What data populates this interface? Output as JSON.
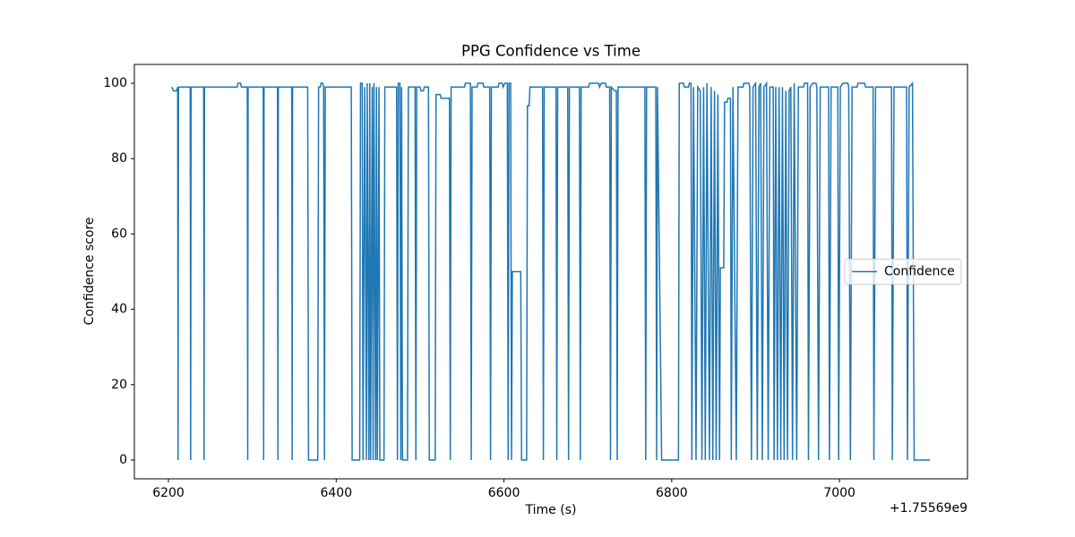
{
  "chart_data": {
    "type": "line",
    "title": "PPG Confidence vs Time",
    "x_label": "Time (s)",
    "y_label": "Confidence score",
    "x_offset_text": "+1.75569e9",
    "xlim": [
      6159.4,
      7152.6
    ],
    "ylim": [
      -5,
      105
    ],
    "xticks": [
      6200,
      6400,
      6600,
      6800,
      7000
    ],
    "yticks": [
      0,
      20,
      40,
      60,
      80,
      100
    ],
    "grid": false,
    "legend_loc": "center right",
    "x": [
      6204,
      6206,
      6210,
      6211,
      6211.5,
      6212,
      6226,
      6226.5,
      6227,
      6242,
      6242.5,
      6243,
      6282,
      6283,
      6286,
      6287,
      6294,
      6294.5,
      6295,
      6313,
      6313.5,
      6314,
      6330,
      6330.5,
      6331,
      6347,
      6347.5,
      6348,
      6366,
      6367,
      6378,
      6379,
      6381,
      6382,
      6384,
      6385,
      6386,
      6387,
      6418,
      6419,
      6428,
      6429,
      6431,
      6432,
      6434,
      6436,
      6437,
      6439,
      6440,
      6441,
      6443,
      6444,
      6445,
      6447,
      6448,
      6449,
      6451,
      6452,
      6457,
      6458,
      6472,
      6473,
      6474,
      6476,
      6477,
      6478,
      6479,
      6485,
      6486,
      6494,
      6495,
      6496,
      6500,
      6501,
      6504,
      6505,
      6510,
      6511,
      6518,
      6519,
      6524,
      6525,
      6535,
      6536,
      6537,
      6553,
      6554,
      6560,
      6561,
      6562,
      6568,
      6569,
      6575,
      6576,
      6583,
      6584,
      6585,
      6593,
      6594,
      6598,
      6599,
      6601,
      6604,
      6605,
      6606,
      6608,
      6609,
      6610,
      6620,
      6621,
      6627,
      6628,
      6630,
      6631,
      6646,
      6647,
      6648,
      6662,
      6663,
      6664,
      6676,
      6677,
      6678,
      6690,
      6691,
      6692,
      6701,
      6702,
      6713,
      6714,
      6716,
      6721,
      6722,
      6726,
      6727,
      6728,
      6732,
      6734,
      6735,
      6736,
      6768,
      6769,
      6770,
      6781,
      6782,
      6783,
      6788,
      6808,
      6809,
      6814,
      6815,
      6820,
      6821,
      6823,
      6824,
      6826,
      6829,
      6831,
      6834,
      6836,
      6838,
      6840,
      6842,
      6845,
      6847,
      6849,
      6851,
      6853,
      6855,
      6857,
      6858,
      6862,
      6863,
      6866,
      6867,
      6870,
      6871,
      6873,
      6877,
      6879,
      6885,
      6886,
      6892,
      6893,
      6895,
      6897,
      6900,
      6902,
      6904,
      6906,
      6908,
      6910,
      6913,
      6915,
      6917,
      6921,
      6922,
      6924,
      6926,
      6928,
      6930,
      6932,
      6934,
      6936,
      6938,
      6940,
      6942,
      6944,
      6946,
      6949,
      6951,
      6957,
      6958,
      6962,
      6963,
      6965,
      6968,
      6972,
      6973,
      6975,
      6977,
      6987,
      6988,
      6990,
      6998,
      6999,
      7001,
      7004,
      7010,
      7011,
      7013,
      7015,
      7021,
      7022,
      7030,
      7031,
      7040,
      7041,
      7043,
      7062,
      7063,
      7065,
      7080,
      7081,
      7083,
      7087,
      7089,
      7108
    ],
    "series": [
      {
        "name": "Confidence",
        "color": "#1f77b4",
        "values": [
          99,
          98,
          98,
          99,
          0,
          99,
          99,
          0,
          99,
          99,
          0,
          99,
          99,
          100,
          100,
          99,
          99,
          0,
          99,
          99,
          0,
          99,
          99,
          0,
          99,
          99,
          0,
          99,
          99,
          0,
          0,
          99,
          99,
          100,
          100,
          99,
          0,
          99,
          99,
          0,
          0,
          100,
          100,
          0,
          99,
          0,
          100,
          0,
          100,
          0,
          99,
          0,
          100,
          0,
          99,
          0,
          99,
          0,
          0,
          99,
          99,
          0,
          100,
          100,
          0,
          99,
          0,
          0,
          99,
          99,
          0,
          99,
          99,
          98,
          98,
          99,
          99,
          0,
          0,
          97,
          97,
          96,
          96,
          0,
          99,
          99,
          100,
          100,
          0,
          99,
          99,
          100,
          100,
          99,
          99,
          0,
          99,
          99,
          100,
          100,
          99,
          100,
          100,
          0,
          100,
          100,
          0,
          50,
          50,
          0,
          0,
          94,
          94,
          99,
          99,
          0,
          99,
          99,
          0,
          99,
          99,
          0,
          99,
          99,
          0,
          99,
          99,
          100,
          100,
          99,
          100,
          100,
          99,
          99,
          0,
          99,
          98,
          98,
          0,
          99,
          99,
          0,
          99,
          99,
          0,
          99,
          0,
          0,
          100,
          100,
          99,
          99,
          100,
          100,
          0,
          99,
          0,
          99,
          98,
          0,
          99,
          0,
          100,
          0,
          99,
          0,
          98,
          0,
          97,
          0,
          51,
          51,
          95,
          95,
          96,
          96,
          0,
          99,
          0,
          99,
          99,
          100,
          100,
          99,
          0,
          99,
          100,
          0,
          99,
          100,
          0,
          99,
          100,
          0,
          99,
          99,
          0,
          99,
          0,
          99,
          0,
          99,
          0,
          98,
          0,
          98,
          99,
          0,
          100,
          0,
          99,
          99,
          100,
          100,
          0,
          99,
          100,
          100,
          99,
          0,
          99,
          99,
          0,
          99,
          99,
          0,
          99,
          100,
          100,
          99,
          0,
          99,
          99,
          100,
          100,
          99,
          99,
          0,
          99,
          99,
          0,
          99,
          99,
          0,
          99,
          100,
          0,
          0
        ]
      }
    ]
  }
}
